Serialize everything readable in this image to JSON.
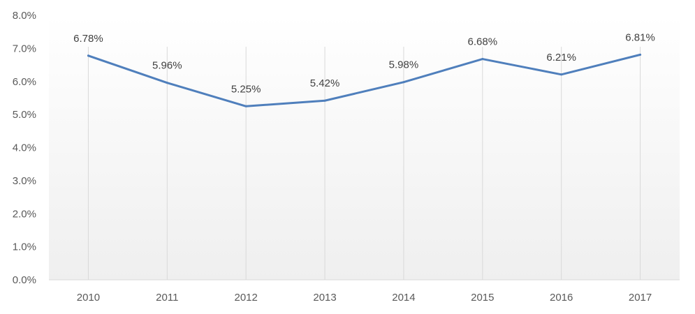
{
  "chart_data": {
    "type": "line",
    "categories": [
      "2010",
      "2011",
      "2012",
      "2013",
      "2014",
      "2015",
      "2016",
      "2017"
    ],
    "series": [
      {
        "values": [
          6.78,
          5.96,
          5.25,
          5.42,
          5.98,
          6.68,
          6.21,
          6.81
        ],
        "data_labels": [
          "6.78%",
          "5.96%",
          "5.25%",
          "5.42%",
          "5.98%",
          "6.68%",
          "6.21%",
          "6.81%"
        ]
      }
    ],
    "y_ticks": [
      "0.0%",
      "1.0%",
      "2.0%",
      "3.0%",
      "4.0%",
      "5.0%",
      "6.0%",
      "7.0%",
      "8.0%"
    ],
    "ylim": [
      0,
      8
    ],
    "title": "",
    "xlabel": "",
    "ylabel": "",
    "grid": "vertical lines at categories",
    "legend": "none",
    "colors": {
      "line": "#4f7fbc",
      "grid": "#d9d9d9",
      "plot_gradient_top": "#ffffff",
      "plot_gradient_bottom": "#efefef",
      "text": "#595959"
    }
  }
}
